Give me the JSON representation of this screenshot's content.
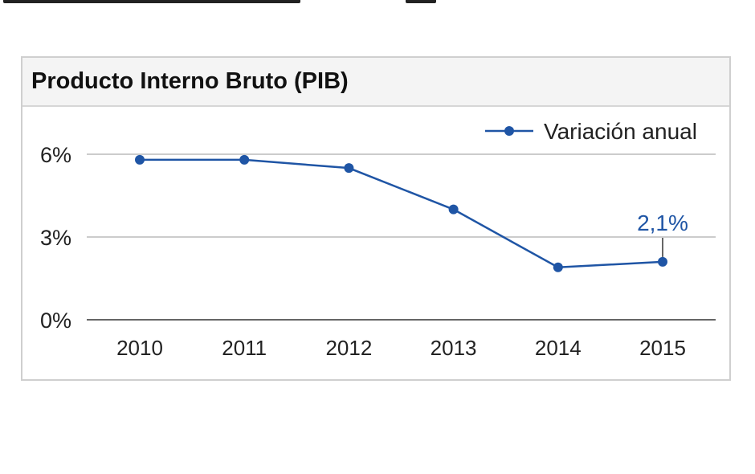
{
  "card": {
    "title": "Producto Interno Bruto (PIB)"
  },
  "chart_data": {
    "type": "line",
    "title": "Producto Interno Bruto (PIB)",
    "categories": [
      "2010",
      "2011",
      "2012",
      "2013",
      "2014",
      "2015"
    ],
    "series": [
      {
        "name": "Variación anual",
        "values": [
          5.8,
          5.8,
          5.5,
          4.0,
          1.9,
          2.1
        ],
        "color": "#1f55a5"
      }
    ],
    "y_ticks": [
      {
        "value": 0,
        "label": "0%"
      },
      {
        "value": 3,
        "label": "3%"
      },
      {
        "value": 6,
        "label": "6%"
      }
    ],
    "ylim": [
      0,
      6
    ],
    "grid": true,
    "legend_position": "top-right",
    "annotation": {
      "index": 5,
      "label": "2,1%"
    },
    "colors": {
      "line": "#1f55a5",
      "grid": "#cccccc",
      "axis": "#666666",
      "header_bg": "#f4f4f4",
      "border": "#cfcfcf"
    }
  }
}
